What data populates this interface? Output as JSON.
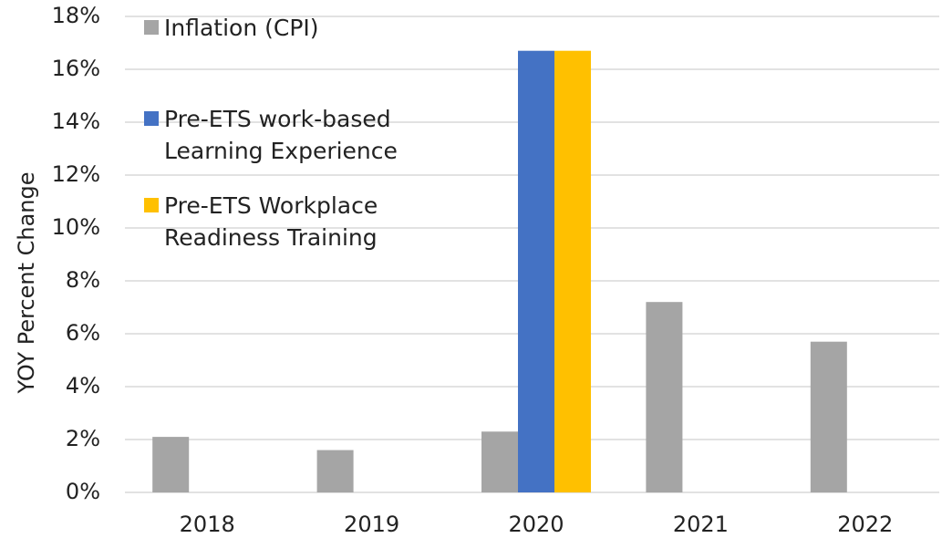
{
  "chart_data": {
    "type": "bar",
    "y_label": "YOY Percent Change",
    "categories": [
      "2018",
      "2019",
      "2020",
      "2021",
      "2022"
    ],
    "series": [
      {
        "name": "Inflation (CPI)",
        "color": "#a5a5a5",
        "values": [
          2.1,
          1.6,
          2.3,
          7.2,
          5.7
        ]
      },
      {
        "name": "Pre-ETS work-based Learning Experience",
        "color": "#4472c4",
        "values": [
          null,
          null,
          16.7,
          null,
          null
        ]
      },
      {
        "name": "Pre-ETS Workplace Readiness Training",
        "color": "#ffc000",
        "values": [
          null,
          null,
          16.7,
          null,
          null
        ]
      }
    ],
    "ylim": [
      0,
      18
    ],
    "yticks": [
      {
        "value": 0,
        "label": "0%"
      },
      {
        "value": 2,
        "label": "2%"
      },
      {
        "value": 4,
        "label": "4%"
      },
      {
        "value": 6,
        "label": "6%"
      },
      {
        "value": 8,
        "label": "8%"
      },
      {
        "value": 10,
        "label": "10%"
      },
      {
        "value": 12,
        "label": "12%"
      },
      {
        "value": 14,
        "label": "14%"
      },
      {
        "value": 16,
        "label": "16%"
      },
      {
        "value": 18,
        "label": "18%"
      }
    ],
    "grid": true,
    "legend": "top-left"
  }
}
